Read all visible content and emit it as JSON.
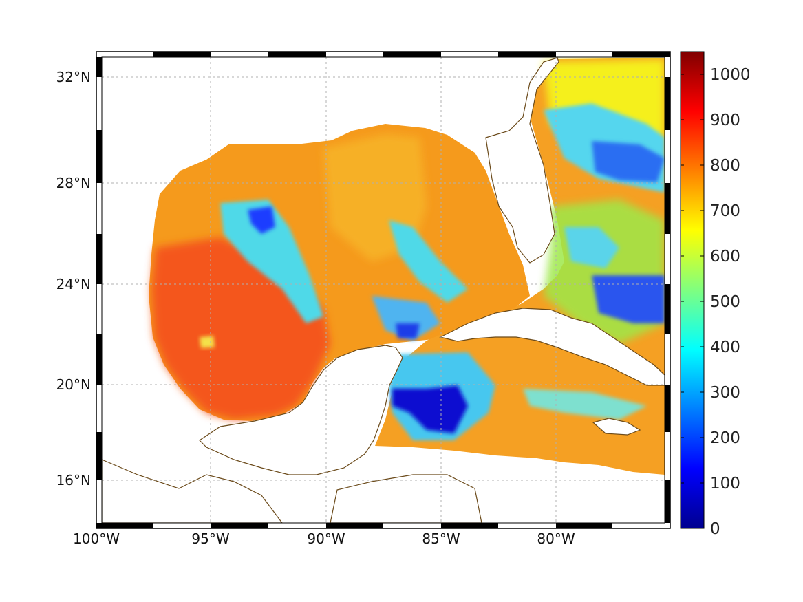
{
  "map": {
    "lon_labels": [
      "100°W",
      "95°W",
      "90°W",
      "85°W",
      "80°W"
    ],
    "lat_labels": [
      "32°N",
      "28°N",
      "24°N",
      "20°N",
      "16°N"
    ],
    "grid": true,
    "frame": "black-white alternating border",
    "coastline_color": "#6b4a1a",
    "land_color": "#ffffff"
  },
  "colorbar": {
    "labels": [
      "1000",
      "900",
      "800",
      "700",
      "600",
      "500",
      "400",
      "300",
      "200",
      "100",
      "0"
    ],
    "min": 0,
    "max": 1050,
    "colormap": "jet"
  }
}
